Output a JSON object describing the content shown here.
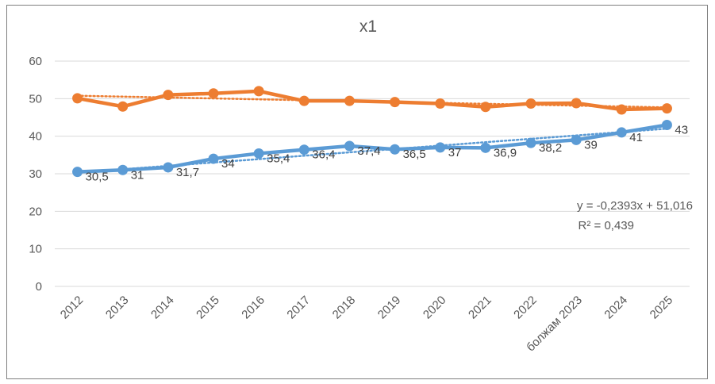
{
  "chart_data": {
    "type": "line",
    "title": "x1",
    "categories": [
      "2012",
      "2013",
      "2014",
      "2015",
      "2016",
      "2017",
      "2018",
      "2019",
      "2020",
      "2021",
      "2022",
      "болжам 2023",
      "2024",
      "2025"
    ],
    "ylim": [
      0,
      60
    ],
    "yticks": [
      0,
      10,
      20,
      30,
      40,
      50,
      60
    ],
    "grid": true,
    "series": [
      {
        "color": "#ed7d31",
        "values": [
          50.1,
          47.9,
          51.0,
          51.4,
          52.0,
          49.4,
          49.4,
          49.1,
          48.7,
          47.8,
          48.7,
          48.8,
          47.1,
          47.4
        ],
        "data_labels": false,
        "trendline": {
          "type": "linear",
          "slope": -0.2393,
          "intercept": 51.016,
          "equation": "y = -0,2393x + 51,016",
          "r2_label": "R² = 0,439"
        }
      },
      {
        "color": "#5b9bd5",
        "values": [
          30.5,
          31,
          31.7,
          34,
          35.4,
          36.4,
          37.4,
          36.5,
          37,
          36.9,
          38.2,
          39,
          41,
          43
        ],
        "data_labels": true,
        "labels": [
          "30,5",
          "31",
          "31,7",
          "34",
          "35,4",
          "36,4",
          "37,4",
          "36,5",
          "37",
          "36,9",
          "38,2",
          "39",
          "41",
          "43"
        ],
        "trendline": {
          "type": "linear",
          "slope": 0.9,
          "intercept": 29.4
        }
      }
    ]
  }
}
